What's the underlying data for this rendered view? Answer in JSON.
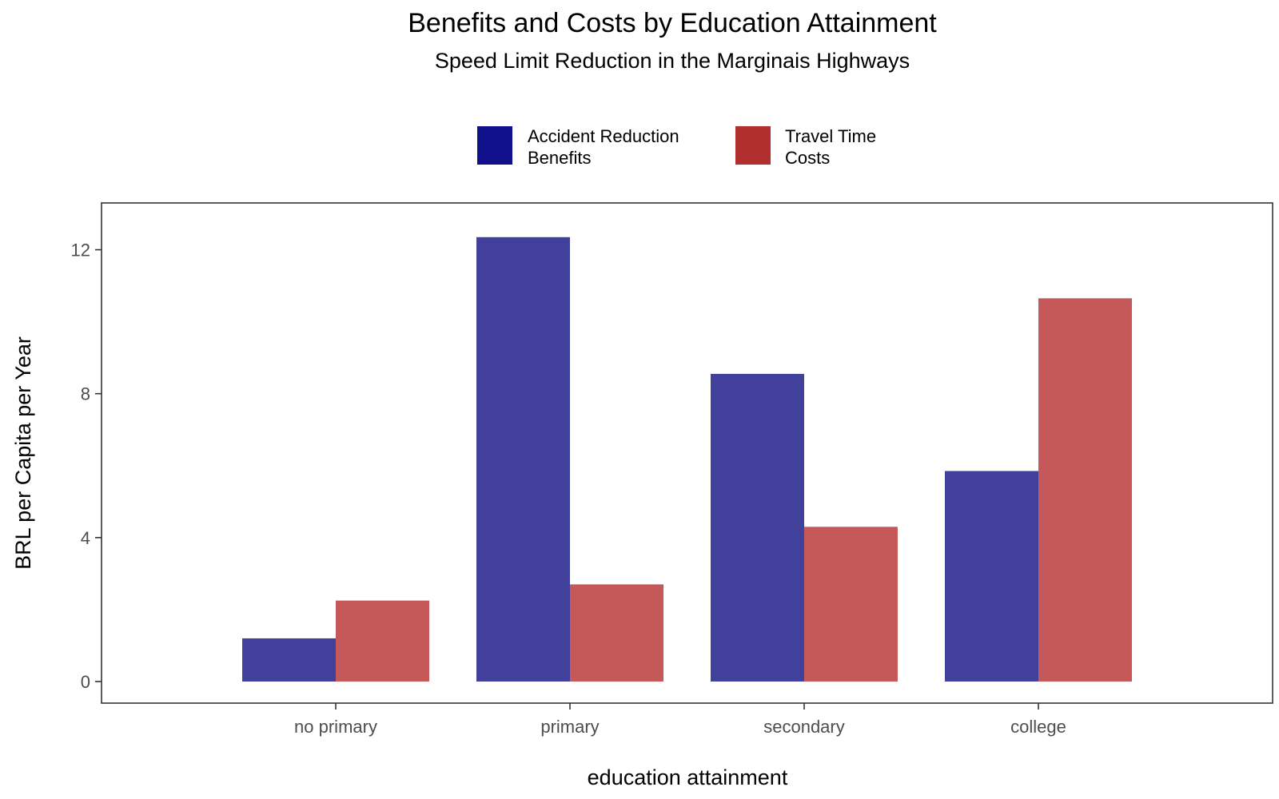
{
  "chart_data": {
    "type": "bar",
    "title": "Benefits and Costs by Education Attainment",
    "subtitle": "Speed Limit Reduction in the Marginais Highways",
    "xlabel": "education attainment",
    "ylabel": "BRL per Capita per Year",
    "categories": [
      "no primary",
      "primary",
      "secondary",
      "college"
    ],
    "series": [
      {
        "name": "Accident Reduction Benefits",
        "legend_lines": [
          "Accident Reduction",
          "Benefits"
        ],
        "color": "#10108a",
        "bar_color": "#41419c",
        "values": [
          1.2,
          12.35,
          8.55,
          5.85
        ]
      },
      {
        "name": "Travel Time Costs",
        "legend_lines": [
          "Travel Time",
          "Costs"
        ],
        "color": "#b22f2f",
        "bar_color": "#c55858",
        "values": [
          2.25,
          2.7,
          4.3,
          10.65
        ]
      }
    ],
    "ylim": [
      -0.6,
      13.3
    ],
    "yticks": [
      0,
      4,
      8,
      12
    ],
    "ytick_labels": [
      "0",
      "4",
      "8",
      "12"
    ],
    "grid": false,
    "legend_position": "top"
  }
}
